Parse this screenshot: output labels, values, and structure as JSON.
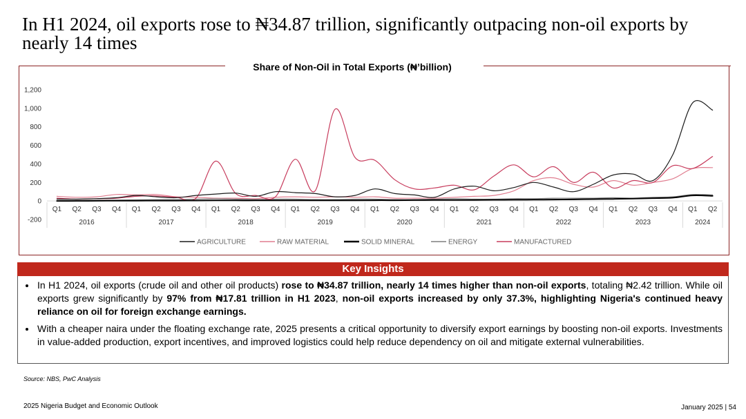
{
  "slide_title": "In H1 2024, oil exports rose to ₦34.87 trillion, significantly outpacing non-oil exports by nearly 14 times",
  "chart_data": {
    "type": "line",
    "title": "Share of Non-Oil in Total Exports (₦’billion)",
    "ylim": [
      -200,
      1200
    ],
    "yticks": [
      "1,200",
      "1,000",
      "800",
      "600",
      "400",
      "200",
      "0",
      "-200"
    ],
    "ytick_values": [
      1200,
      1000,
      800,
      600,
      400,
      200,
      0,
      -200
    ],
    "categories": [
      "Q1",
      "Q2",
      "Q3",
      "Q4",
      "Q1",
      "Q2",
      "Q3",
      "Q4",
      "Q1",
      "Q2",
      "Q3",
      "Q4",
      "Q1",
      "Q2",
      "Q3",
      "Q4",
      "Q1",
      "Q2",
      "Q3",
      "Q4",
      "Q1",
      "Q2",
      "Q3",
      "Q4",
      "Q1",
      "Q2",
      "Q3",
      "Q4",
      "Q1",
      "Q2",
      "Q3",
      "Q4",
      "Q1",
      "Q2"
    ],
    "years": [
      "2016",
      "2017",
      "2018",
      "2019",
      "2020",
      "2021",
      "2022",
      "2023",
      "2024"
    ],
    "year_quarter_counts": [
      4,
      4,
      4,
      4,
      4,
      4,
      4,
      4,
      2
    ],
    "series": [
      {
        "name": "AGRICULTURE",
        "color": "#1a1a1a",
        "width": 1.2,
        "values": [
          20,
          20,
          25,
          35,
          60,
          45,
          35,
          60,
          75,
          85,
          50,
          100,
          90,
          80,
          45,
          60,
          130,
          80,
          65,
          40,
          130,
          160,
          110,
          145,
          200,
          150,
          100,
          180,
          280,
          290,
          220,
          500,
          1060,
          980
        ]
      },
      {
        "name": "RAW MATERIAL",
        "color": "#e07d8f",
        "width": 1.2,
        "values": [
          50,
          40,
          45,
          70,
          65,
          70,
          45,
          40,
          30,
          30,
          25,
          40,
          45,
          40,
          45,
          40,
          45,
          30,
          30,
          30,
          40,
          50,
          60,
          110,
          220,
          250,
          180,
          150,
          220,
          170,
          200,
          240,
          350,
          360
        ]
      },
      {
        "name": "SOLID MINERAL",
        "color": "#000000",
        "width": 2,
        "values": [
          0,
          1,
          2,
          3,
          3,
          4,
          4,
          5,
          6,
          6,
          6,
          7,
          7,
          7,
          6,
          7,
          8,
          8,
          9,
          10,
          10,
          11,
          12,
          13,
          14,
          15,
          17,
          20,
          22,
          25,
          30,
          35,
          60,
          55
        ]
      },
      {
        "name": "ENERGY",
        "color": "#7f7f7f",
        "width": 1.2,
        "values": [
          5,
          6,
          8,
          10,
          12,
          15,
          15,
          20,
          25,
          20,
          15,
          20,
          20,
          15,
          15,
          20,
          20,
          15,
          15,
          20,
          25,
          20,
          20,
          25,
          25,
          30,
          30,
          30,
          35,
          30,
          40,
          45,
          70,
          65
        ]
      },
      {
        "name": "MANUFACTURED",
        "color": "#c73b5c",
        "width": 1.2,
        "values": [
          30,
          20,
          25,
          30,
          50,
          55,
          40,
          30,
          430,
          80,
          60,
          45,
          450,
          110,
          990,
          470,
          440,
          230,
          130,
          140,
          170,
          120,
          270,
          390,
          260,
          370,
          200,
          310,
          140,
          220,
          200,
          380,
          350,
          480
        ]
      }
    ]
  },
  "insights": {
    "heading": "Key Insights",
    "bullet1": {
      "p1": "In H1 2024, oil exports (crude oil and other oil products) ",
      "b1": "rose to ₦34.87 trillion, nearly 14 times higher than non-oil exports",
      "p2": ", totaling ₦2.42 trillion. While oil exports grew significantly by ",
      "b2": "97% from ₦17.81 trillion in H1 2023",
      "p3": ", ",
      "b3": "non-oil exports increased by only 37.3%, highlighting Nigeria's continued heavy reliance on oil for foreign exchange earnings."
    },
    "bullet2": "With a cheaper naira under the floating exchange rate, 2025 presents a critical opportunity to diversify export earnings by boosting non-oil exports. Investments in value-added production, export incentives, and improved logistics could help reduce dependency on oil and mitigate external vulnerabilities."
  },
  "source": "Source: NBS, PwC Analysis",
  "footer": {
    "left": "2025 Nigeria Budget and Economic Outlook",
    "right": "January 2025 | 54"
  }
}
